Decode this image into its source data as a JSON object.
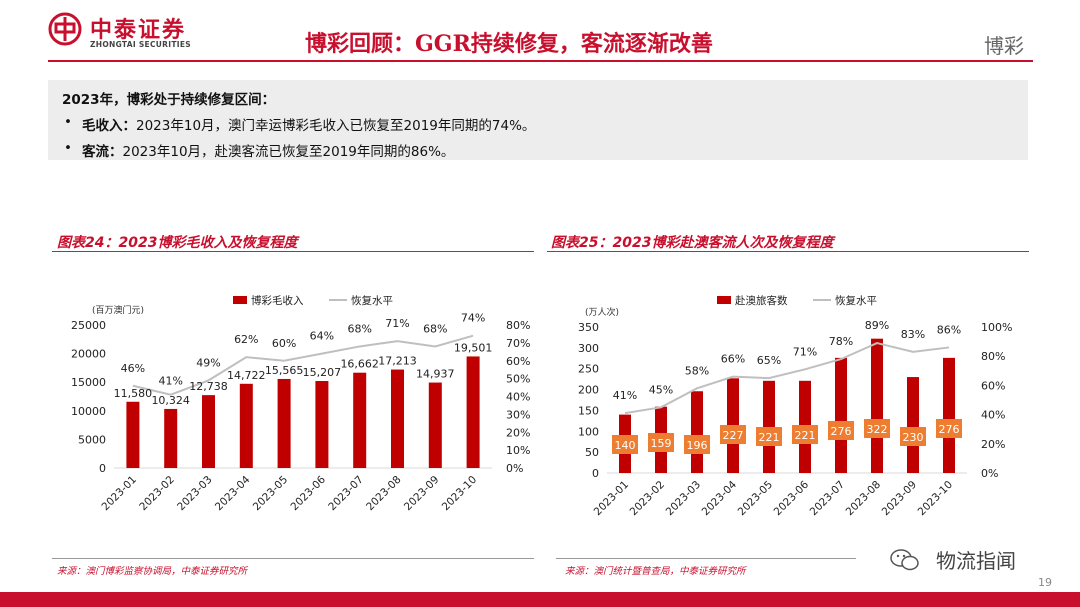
{
  "header": {
    "company_cn": "中泰证券",
    "company_en": "ZHONGTAI SECURITIES",
    "title": "博彩回顾：GGR持续修复，客流逐渐改善",
    "section": "博彩"
  },
  "summary": {
    "heading": "2023年，博彩处于持续修复区间：",
    "bullets": [
      {
        "label": "毛收入：",
        "text": "2023年10月，澳门幸运博彩毛收入已恢复至2019年同期的74%。"
      },
      {
        "label": "客流：",
        "text": "2023年10月，赴澳客流已恢复至2019年同期的86%。"
      }
    ]
  },
  "colors": {
    "brand": "#c8102e",
    "bar": "#c00000",
    "line": "#bfbfbf",
    "label_box": "#ed7d31"
  },
  "footer": {
    "page": "19",
    "watermark": "物流指闻"
  },
  "chart_data": [
    {
      "type": "bar",
      "title": "图表24：2023博彩毛收入及恢复程度",
      "source": "来源：澳门博彩监察协调局，中泰证券研究所",
      "unit_label": "(百万澳门元)",
      "categories": [
        "2023-01",
        "2023-02",
        "2023-03",
        "2023-04",
        "2023-05",
        "2023-06",
        "2023-07",
        "2023-08",
        "2023-09",
        "2023-10"
      ],
      "series": [
        {
          "name": "博彩毛收入",
          "kind": "bar",
          "axis": "left",
          "values": [
            11580,
            10324,
            12738,
            14722,
            15565,
            15207,
            16662,
            17213,
            14937,
            19501
          ],
          "value_labels": [
            "11,580",
            "10,324",
            "12,738",
            "14,722",
            "15,565",
            "15,207",
            "16,662",
            "17,213",
            "14,937",
            "19,501"
          ]
        },
        {
          "name": "恢复水平",
          "kind": "line",
          "axis": "right",
          "values": [
            46,
            41,
            49,
            62,
            60,
            64,
            68,
            71,
            68,
            74
          ],
          "value_labels": [
            "46%",
            "41%",
            "49%",
            "62%",
            "60%",
            "64%",
            "68%",
            "71%",
            "68%",
            "74%"
          ]
        }
      ],
      "ylim": [
        0,
        25000
      ],
      "yticks": [
        "0",
        "5000",
        "10000",
        "15000",
        "20000",
        "25000"
      ],
      "y2lim": [
        0,
        80
      ],
      "y2ticks": [
        "0%",
        "10%",
        "20%",
        "30%",
        "40%",
        "50%",
        "60%",
        "70%",
        "80%"
      ],
      "legend": "top-center"
    },
    {
      "type": "bar",
      "title": "图表25：2023博彩赴澳客流人次及恢复程度",
      "source": "来源：澳门统计暨普查局，中泰证券研究所",
      "unit_label": "(万人次)",
      "categories": [
        "2023-01",
        "2023-02",
        "2023-03",
        "2023-04",
        "2023-05",
        "2023-06",
        "2023-07",
        "2023-08",
        "2023-09",
        "2023-10"
      ],
      "series": [
        {
          "name": "赴澳旅客数",
          "kind": "bar",
          "axis": "left",
          "values": [
            140,
            159,
            196,
            227,
            221,
            221,
            276,
            322,
            230,
            276
          ],
          "value_labels": [
            "140",
            "159",
            "196",
            "227",
            "221",
            "221",
            "276",
            "322",
            "230",
            "276"
          ]
        },
        {
          "name": "恢复水平",
          "kind": "line",
          "axis": "right",
          "values": [
            41,
            45,
            58,
            66,
            65,
            71,
            78,
            89,
            83,
            86
          ],
          "value_labels": [
            "41%",
            "45%",
            "58%",
            "66%",
            "65%",
            "71%",
            "78%",
            "89%",
            "83%",
            "86%"
          ]
        }
      ],
      "ylim": [
        0,
        350
      ],
      "yticks": [
        "0",
        "50",
        "100",
        "150",
        "200",
        "250",
        "300",
        "350"
      ],
      "y2lim": [
        0,
        100
      ],
      "y2ticks": [
        "0%",
        "20%",
        "40%",
        "60%",
        "80%",
        "100%"
      ],
      "legend": "top-center"
    }
  ]
}
